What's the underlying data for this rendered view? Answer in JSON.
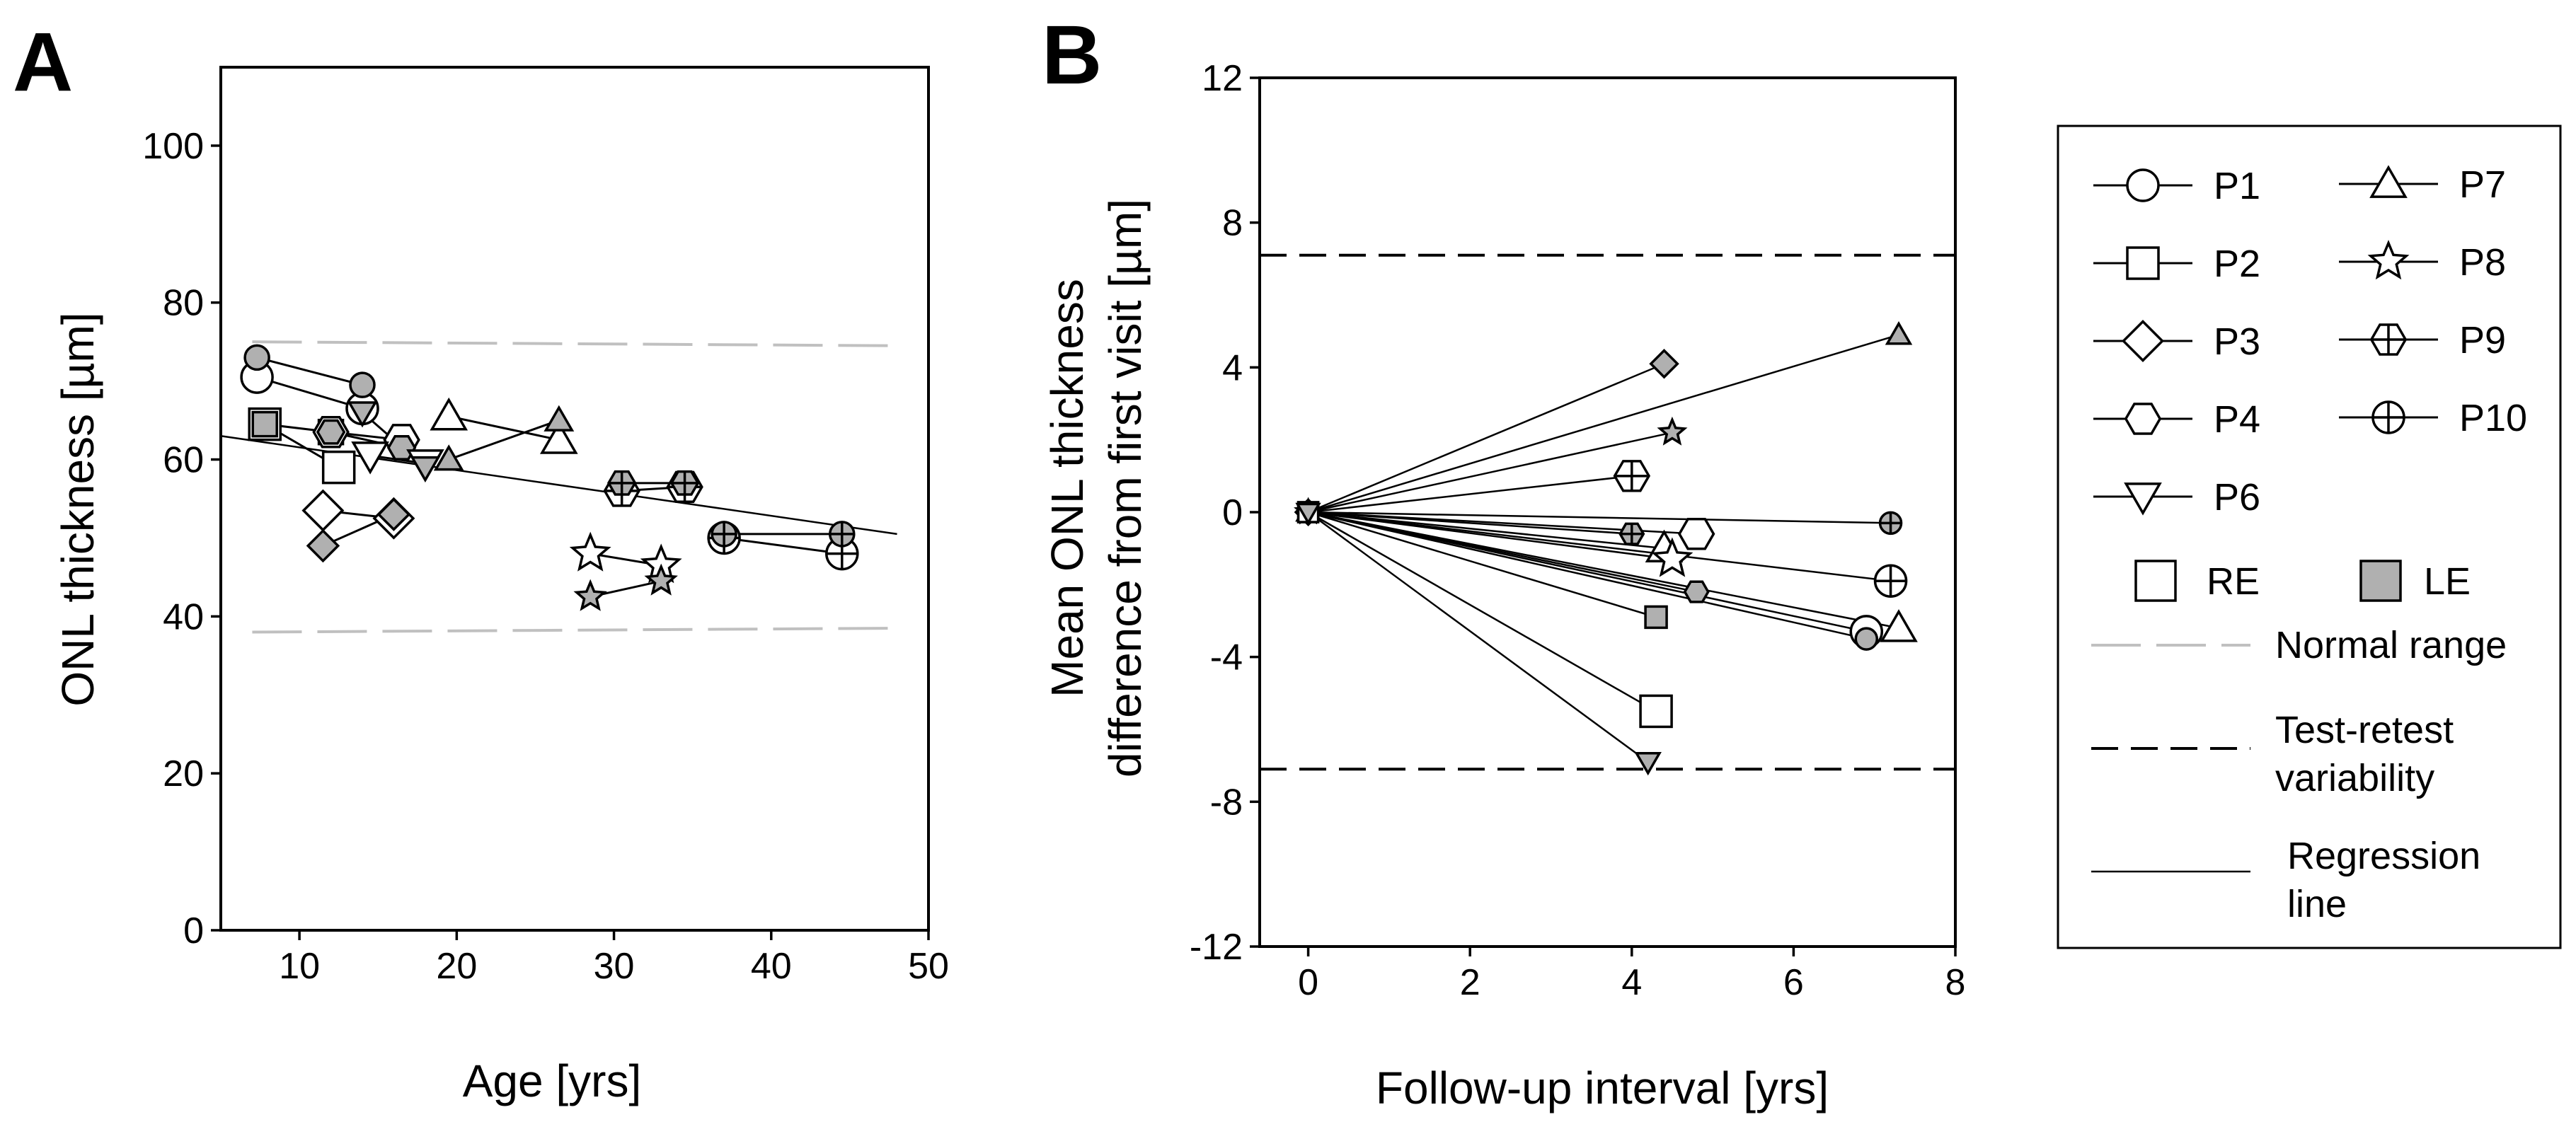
{
  "chart_data": [
    {
      "panel": "A",
      "type": "scatter",
      "xlabel": "Age [yrs]",
      "ylabel": "ONL thickness [µm]",
      "xlim": [
        5,
        50
      ],
      "ylim": [
        0,
        110
      ],
      "xticks": [
        10,
        20,
        30,
        40,
        50
      ],
      "yticks": [
        0,
        20,
        40,
        60,
        80,
        100
      ],
      "normal_range": {
        "upper": [
          [
            7,
            75
          ],
          [
            48,
            74.5
          ]
        ],
        "lower": [
          [
            7,
            38
          ],
          [
            48,
            38.5
          ]
        ]
      },
      "regression_line": [
        [
          5,
          63
        ],
        [
          48,
          50.5
        ]
      ],
      "patients": [
        {
          "name": "P1",
          "marker": "circle",
          "RE": [
            [
              7.3,
              70.5
            ],
            [
              14,
              66.5
            ]
          ],
          "LE": [
            [
              7.3,
              73
            ],
            [
              14,
              69.5
            ]
          ]
        },
        {
          "name": "P2",
          "marker": "square",
          "RE": [
            [
              7.8,
              64.5
            ],
            [
              12.5,
              59
            ]
          ],
          "LE": [
            [
              7.8,
              64.5
            ],
            [
              12,
              63.5
            ]
          ]
        },
        {
          "name": "P3",
          "marker": "diamond",
          "RE": [
            [
              11.5,
              53.5
            ],
            [
              16,
              52.5
            ]
          ],
          "LE": [
            [
              11.5,
              49
            ],
            [
              16,
              53
            ]
          ]
        },
        {
          "name": "P4",
          "marker": "hexagon",
          "RE": [
            [
              12,
              63.5
            ],
            [
              16.5,
              62.5
            ]
          ],
          "LE": [
            [
              12,
              63.5
            ],
            [
              16.5,
              61.5
            ]
          ]
        },
        {
          "name": "P6",
          "marker": "triangle-down",
          "RE": [
            [
              14.5,
              60.5
            ],
            [
              18,
              59.5
            ]
          ],
          "LE": [
            [
              14,
              66
            ],
            [
              18,
              59
            ]
          ]
        },
        {
          "name": "P7",
          "marker": "triangle-up",
          "RE": [
            [
              19.5,
              65.5
            ],
            [
              26.5,
              62.5
            ]
          ],
          "LE": [
            [
              19.5,
              60
            ],
            [
              26.5,
              65
            ]
          ]
        },
        {
          "name": "P8",
          "marker": "star",
          "RE": [
            [
              28.5,
              48
            ],
            [
              33,
              46.5
            ]
          ],
          "LE": [
            [
              28.5,
              42.5
            ],
            [
              33,
              44.5
            ]
          ]
        },
        {
          "name": "P9",
          "marker": "hexagon-cross",
          "RE": [
            [
              30.5,
              56
            ],
            [
              34.5,
              56.5
            ]
          ],
          "LE": [
            [
              30.5,
              57
            ],
            [
              34.5,
              57
            ]
          ]
        },
        {
          "name": "P10",
          "marker": "circle-cross",
          "RE": [
            [
              37,
              50
            ],
            [
              44.5,
              48
            ]
          ],
          "LE": [
            [
              37,
              50.5
            ],
            [
              44.5,
              50.5
            ]
          ]
        }
      ]
    },
    {
      "panel": "B",
      "type": "scatter",
      "xlabel": "Follow-up interval [yrs]",
      "ylabel_line1": "Mean ONL thickness",
      "ylabel_line2": "difference from first visit [µm]",
      "xlim": [
        -0.6,
        8
      ],
      "ylim": [
        -12,
        12
      ],
      "xticks": [
        0,
        2,
        4,
        6,
        8
      ],
      "yticks": [
        -12,
        -8,
        -4,
        0,
        4,
        8,
        12
      ],
      "test_retest": [
        7.1,
        -7.1
      ],
      "points": [
        {
          "patient": "P3",
          "eye": "LE",
          "x": 4.4,
          "y": 4.1
        },
        {
          "patient": "P7",
          "eye": "LE",
          "x": 7.3,
          "y": 4.9
        },
        {
          "patient": "P8",
          "eye": "LE",
          "x": 4.5,
          "y": 2.2
        },
        {
          "patient": "P9",
          "eye": "RE",
          "x": 4.0,
          "y": 1.0
        },
        {
          "patient": "P10",
          "eye": "LE",
          "x": 7.2,
          "y": -0.3
        },
        {
          "patient": "P9",
          "eye": "LE",
          "x": 4.0,
          "y": -0.6
        },
        {
          "patient": "P4",
          "eye": "RE",
          "x": 4.8,
          "y": -0.6
        },
        {
          "patient": "P7",
          "eye": "RE",
          "x": 4.4,
          "y": -1.0
        },
        {
          "patient": "P8",
          "eye": "RE",
          "x": 4.5,
          "y": -1.3
        },
        {
          "patient": "P4",
          "eye": "LE",
          "x": 4.8,
          "y": -2.2
        },
        {
          "patient": "P10",
          "eye": "RE",
          "x": 7.2,
          "y": -1.9
        },
        {
          "patient": "P1",
          "eye": "RE",
          "x": 6.9,
          "y": -3.3
        },
        {
          "patient": "P7",
          "eye": "RE",
          "x": 7.3,
          "y": -3.2
        },
        {
          "patient": "P1",
          "eye": "LE",
          "x": 6.9,
          "y": -3.5
        },
        {
          "patient": "P2",
          "eye": "LE",
          "x": 4.3,
          "y": -2.9
        },
        {
          "patient": "P2",
          "eye": "RE",
          "x": 4.3,
          "y": -5.5
        },
        {
          "patient": "P6",
          "eye": "LE",
          "x": 4.2,
          "y": -6.9
        }
      ]
    }
  ],
  "panel_labels": {
    "a": "A",
    "b": "B"
  },
  "legend": {
    "patients": [
      "P1",
      "P2",
      "P3",
      "P4",
      "P6",
      "P7",
      "P8",
      "P9",
      "P10"
    ],
    "re_label": "RE",
    "le_label": "LE",
    "normal_range_label": "Normal range",
    "test_retest_line1": "Test-retest",
    "test_retest_line2": "variability",
    "regression_line1": "Regression",
    "regression_line2": "line"
  },
  "colors": {
    "open_fill": "#ffffff",
    "filled": "#b0b0b0",
    "normal_range": "#c0c0c0",
    "line": "#000000"
  }
}
